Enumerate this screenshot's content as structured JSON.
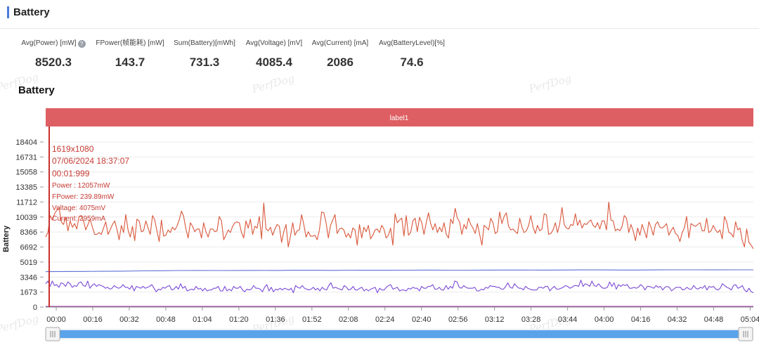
{
  "header": {
    "title": "Battery"
  },
  "stats": [
    {
      "label": "Avg(Power) [mW]",
      "value": "8520.3",
      "help": true
    },
    {
      "label": "FPower(帧能耗) [mW]",
      "value": "143.7"
    },
    {
      "label": "Sum(Battery)[mWh]",
      "value": "731.3"
    },
    {
      "label": "Avg(Voltage) [mV]",
      "value": "4085.4"
    },
    {
      "label": "Avg(Current) [mA]",
      "value": "2086"
    },
    {
      "label": "Avg(BatteryLevel)[%]",
      "value": "74.6"
    }
  ],
  "watermark": "PerfDog",
  "chart_title": "Battery",
  "chart_data": {
    "type": "line",
    "band_label": "label1",
    "ylabel": "Battery",
    "ylim": [
      0,
      18404
    ],
    "y_ticks": [
      "0",
      "1673",
      "3346",
      "5019",
      "6692",
      "8366",
      "10039",
      "11712",
      "13385",
      "15058",
      "16731",
      "18404"
    ],
    "x_ticks": [
      "00:00",
      "00:16",
      "00:32",
      "00:48",
      "01:04",
      "01:20",
      "01:36",
      "01:52",
      "02:08",
      "02:24",
      "02:40",
      "02:56",
      "03:12",
      "03:28",
      "03:44",
      "04:00",
      "04:16",
      "04:32",
      "04:48",
      "05:04"
    ],
    "x_range_seconds": [
      0,
      310
    ],
    "sample_interval_seconds": 1,
    "series": [
      {
        "color": "#d9573b",
        "values": [
          7800,
          8300,
          10200,
          9700,
          10400,
          10800,
          11100,
          9500,
          9200,
          10000,
          8500,
          9600,
          8900,
          9300,
          8700,
          10100,
          10200,
          9600,
          8600,
          9200,
          9800,
          8900,
          8100,
          8100,
          8300,
          8100,
          8800,
          9500,
          8100,
          8600,
          9200,
          9600,
          8700,
          7500,
          9100,
          8300,
          10300,
          8600,
          7800,
          9000,
          7400,
          9800,
          9600,
          8400,
          8500,
          9600,
          8800,
          8100,
          10200,
          9700,
          8500,
          7300,
          9700,
          7900,
          8000,
          8600,
          8300,
          8900,
          8600,
          9000,
          9700,
          10700,
          10100,
          8700,
          7700,
          9400,
          9000,
          8400,
          8700,
          8700,
          7700,
          9400,
          8400,
          7800,
          8700,
          8700,
          8400,
          8500,
          10100,
          9600,
          7500,
          8000,
          8600,
          8300,
          9000,
          9400,
          9500,
          9400,
          8300,
          7700,
          9600,
          8800,
          9800,
          8100,
          9000,
          8800,
          10100,
          7600,
          11600,
          8700,
          8500,
          8900,
          8000,
          8700,
          9200,
          9000,
          7200,
          8400,
          9200,
          6700,
          7900,
          9400,
          8000,
          8500,
          8600,
          10300,
          9200,
          7800,
          8400,
          7900,
          7900,
          8000,
          7500,
          8600,
          10600,
          10500,
          9400,
          7700,
          9100,
          9700,
          10300,
          8200,
          8700,
          8800,
          8600,
          7800,
          8200,
          7700,
          8800,
          8600,
          6900,
          9200,
          7700,
          8900,
          8400,
          9100,
          7600,
          8000,
          8600,
          8700,
          8300,
          9100,
          8700,
          7700,
          8000,
          8800,
          6900,
          10400,
          9400,
          9700,
          9900,
          7900,
          10200,
          8000,
          8300,
          9600,
          9900,
          8400,
          10000,
          9400,
          8100,
          9400,
          10500,
          9300,
          8600,
          9300,
          8300,
          8900,
          8400,
          9400,
          8100,
          7700,
          9800,
          9300,
          11000,
          9900,
          9500,
          8100,
          9200,
          8700,
          9900,
          9200,
          8800,
          8200,
          9300,
          8100,
          6900,
          9100,
          8900,
          8600,
          9900,
          9400,
          8200,
          8400,
          10600,
          9300,
          10100,
          10500,
          9000,
          8600,
          8700,
          8400,
          8200,
          9900,
          8900,
          8300,
          8500,
          9100,
          10200,
          8900,
          8200,
          9100,
          8500,
          8700,
          10400,
          10300,
          8100,
          8200,
          8600,
          9400,
          8300,
          9300,
          11100,
          9200,
          8800,
          8700,
          9200,
          9100,
          10400,
          9100,
          9700,
          8800,
          9300,
          9200,
          9500,
          9700,
          9100,
          8900,
          9400,
          8700,
          9600,
          9600,
          8600,
          11700,
          9700,
          9600,
          8500,
          8700,
          8500,
          9000,
          10200,
          9900,
          8300,
          9200,
          8500,
          7400,
          8800,
          8000,
          9200,
          8500,
          7700,
          9500,
          8900,
          8000,
          9200,
          9500,
          8900,
          8800,
          9000,
          9300,
          8000,
          8500,
          8900,
          8200,
          8000,
          7300,
          8300,
          8800,
          10100,
          7700,
          9300,
          9100,
          9000,
          9200,
          9400,
          8500,
          8500,
          9900,
          8300,
          8500,
          9100,
          8600,
          8300,
          8600,
          7600,
          10100,
          9500,
          8300,
          8200,
          7800,
          9500,
          8600,
          8800,
          7400,
          6700,
          8700,
          7200,
          6900,
          6500
        ]
      },
      {
        "color": "#5c6fd6",
        "values": [
          3950,
          3960,
          3970,
          3990,
          4000,
          4030,
          4050,
          4070,
          4080,
          4075,
          4080,
          4090,
          4080,
          4100,
          4100,
          4090,
          4110,
          4100,
          4100,
          4110,
          4120,
          4110,
          4110,
          4120,
          4130,
          4130,
          4120,
          4130,
          4140,
          4140,
          4130,
          4130,
          4140,
          4150,
          4150,
          4140,
          4150,
          4150
        ]
      },
      {
        "color": "#7a4ad6",
        "values": [
          2600,
          2900,
          2300,
          2900,
          2400,
          2500,
          2200,
          2700,
          2600,
          2300,
          2800,
          2600,
          2200,
          2400,
          2300,
          2700,
          2800,
          2400,
          2300,
          2900,
          2100,
          2400,
          2600,
          2300,
          2500,
          2400,
          2300,
          2100,
          2200,
          2000,
          2100,
          2400,
          2200,
          2100,
          2200,
          2500,
          2200,
          2200,
          2000,
          2400,
          1800,
          2300,
          2200,
          2100,
          2300,
          2100,
          2200,
          2300,
          2500,
          2100,
          1700,
          2000,
          1900,
          2200,
          2100,
          2300,
          2400,
          1900,
          2000,
          2300,
          2000,
          2600,
          2100,
          2300,
          1800,
          1900,
          2000,
          1900,
          2300,
          2000,
          2100,
          1800,
          2100,
          1800,
          1900,
          1900,
          2100,
          2100,
          2300,
          1800,
          1800,
          2300,
          1800,
          2000,
          1800,
          2300,
          2100,
          2100,
          2300,
          1900,
          1700,
          2000,
          1900,
          2000,
          2400,
          2100,
          2100,
          2000,
          1700,
          2200,
          2500,
          1800,
          2200,
          1700,
          2000,
          1900,
          2100,
          1900,
          2100,
          2000,
          1900,
          2100,
          1600,
          2400,
          2200,
          2100,
          2400,
          2100,
          2000,
          1900,
          2000,
          2200,
          1900,
          2100,
          1800,
          2200,
          2000,
          1900,
          2400,
          2700,
          2100,
          2200,
          2100,
          2000,
          1900,
          2400,
          2200,
          1900,
          2000,
          2300,
          1900,
          1900,
          2100,
          2200,
          1800,
          2000,
          1800,
          2000,
          2100,
          2200,
          1600,
          2100,
          1900,
          1900,
          2200,
          2400,
          2500,
          2000,
          2100,
          2200,
          1800,
          1900,
          1900,
          1800,
          2100,
          2000,
          2200,
          2100,
          2100,
          1800,
          2300,
          2100,
          2100,
          2300,
          2300,
          2500,
          2000,
          2000,
          2200,
          1900,
          1900,
          2400,
          2000,
          2300,
          2100,
          2900,
          2800,
          2200,
          2100,
          2400,
          2200,
          2100,
          2100,
          2100,
          2200,
          1800,
          1800,
          2000,
          1900,
          2200,
          2100,
          2400,
          2300,
          2300,
          2200,
          2200,
          2000,
          2000,
          2300,
          2700,
          2200,
          2100,
          2600,
          2300,
          2100,
          2100,
          1900,
          2300,
          2100,
          2000,
          1900,
          1900,
          1900,
          2200,
          2200,
          2100,
          2300,
          2300,
          1800,
          2100,
          2300,
          2000,
          2000,
          2100,
          2200,
          2400,
          2300,
          2100,
          2200,
          2400,
          2400,
          2300,
          3000,
          2300,
          2600,
          2500,
          2300,
          2900,
          2400,
          2300,
          2600,
          2300,
          2100,
          2100,
          2200,
          2800,
          2300,
          2700,
          2000,
          2500,
          2300,
          2500,
          2400,
          2500,
          2100,
          2100,
          2200,
          2100,
          2200,
          2500,
          2300,
          1900,
          2300,
          2300,
          2200,
          2100,
          2400,
          2200,
          2300,
          1900,
          2200,
          2300,
          2200,
          1800,
          2000,
          2200,
          2200,
          2200,
          1900,
          2000,
          2200,
          2000,
          2000,
          2400,
          2100,
          2000,
          2200,
          2100,
          2400,
          1900,
          2300,
          2200,
          2300,
          2000,
          1900,
          2100,
          2600,
          2400,
          2200,
          2100,
          1900,
          2400,
          2500,
          2100,
          2200,
          2400,
          1900,
          1700,
          2100,
          1700,
          1600
        ]
      },
      {
        "color": "#a03dab",
        "values": [
          80,
          78,
          76,
          74,
          73,
          71,
          69,
          67
        ]
      }
    ]
  },
  "tooltip": {
    "resolution": "1619x1080",
    "datetime": "07/06/2024 18:37:07",
    "time": "00:01:999",
    "power": "Power  : 12057mW",
    "fpower": "FPower: 239.89mW",
    "voltage": "Voltage: 4075mV",
    "current": "Current: 2959mA"
  },
  "scrollbar": {
    "left_handle": "grip-handle-icon",
    "right_handle": "grip-handle-icon"
  }
}
